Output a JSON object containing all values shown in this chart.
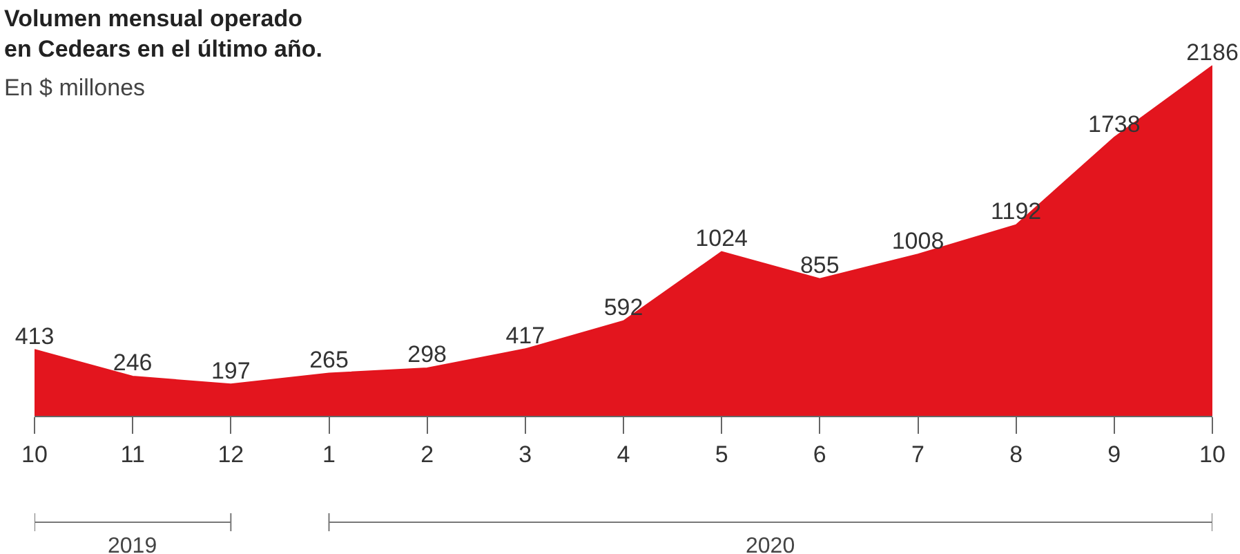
{
  "chart_data": {
    "type": "area",
    "title": "Volumen mensual operado\nen Cedears en el último año.",
    "subtitle": "En $ millones",
    "categories": [
      "10",
      "11",
      "12",
      "1",
      "2",
      "3",
      "4",
      "5",
      "6",
      "7",
      "8",
      "9",
      "10"
    ],
    "values": [
      413,
      246,
      197,
      265,
      298,
      417,
      592,
      1024,
      855,
      1008,
      1192,
      1738,
      2186
    ],
    "color": "#e3151e",
    "data_labels": true,
    "annotations": [
      "2019",
      "2020"
    ]
  }
}
